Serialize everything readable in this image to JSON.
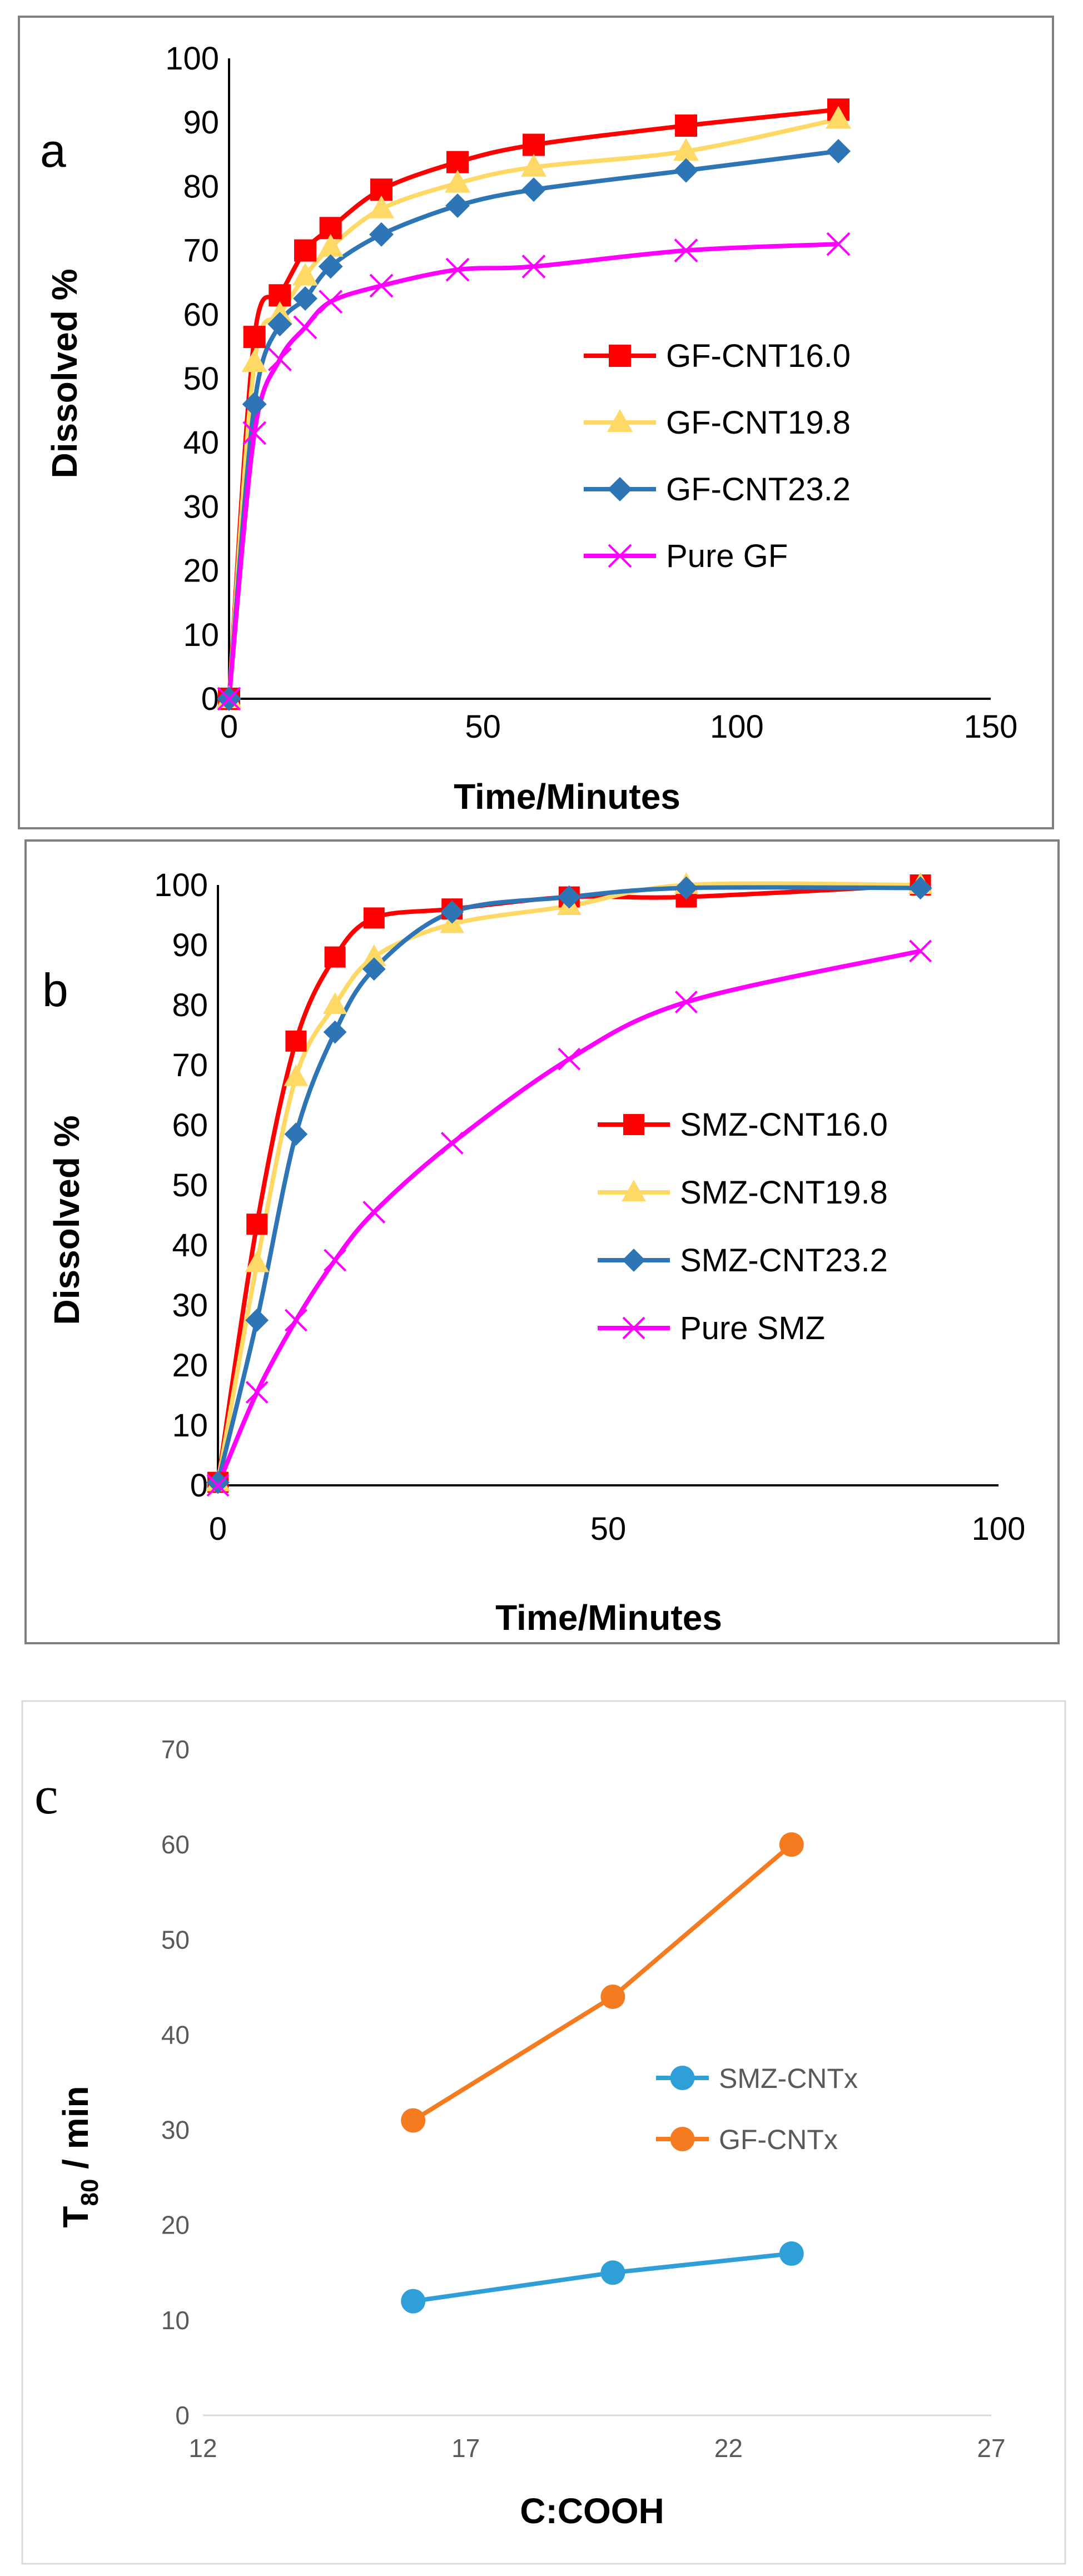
{
  "chart_data": [
    {
      "id": "a",
      "type": "line",
      "panel_label": "a",
      "xlabel": "Time/Minutes",
      "ylabel": "Dissolved %",
      "xlim": [
        0,
        150
      ],
      "ylim": [
        0,
        100
      ],
      "xticks": [
        0,
        50,
        100,
        150
      ],
      "yticks": [
        0,
        10,
        20,
        30,
        40,
        50,
        60,
        70,
        80,
        90,
        100
      ],
      "legend_position": "right",
      "series": [
        {
          "name": "GF-CNT16.0",
          "color": "#ff0000",
          "marker": "square",
          "x": [
            0,
            5,
            10,
            15,
            20,
            30,
            45,
            60,
            90,
            120
          ],
          "y": [
            0,
            56.5,
            63,
            70,
            73.5,
            79.5,
            83.8,
            86.5,
            89.5,
            92
          ]
        },
        {
          "name": "GF-CNT19.8",
          "color": "#ffd966",
          "marker": "triangle",
          "x": [
            0,
            5,
            10,
            15,
            20,
            30,
            45,
            60,
            90,
            120
          ],
          "y": [
            0,
            52.5,
            60,
            66,
            70.5,
            76.5,
            80.5,
            83,
            85.5,
            90.5
          ]
        },
        {
          "name": "GF-CNT23.2",
          "color": "#2e75b6",
          "marker": "diamond",
          "x": [
            0,
            5,
            10,
            15,
            20,
            30,
            45,
            60,
            90,
            120
          ],
          "y": [
            0,
            46,
            58.5,
            62.5,
            67.5,
            72.5,
            77,
            79.5,
            82.5,
            85.5
          ]
        },
        {
          "name": "Pure GF",
          "color": "#ff00ff",
          "marker": "x",
          "x": [
            0,
            5,
            10,
            15,
            20,
            30,
            45,
            60,
            90,
            120
          ],
          "y": [
            0,
            41.5,
            53,
            58,
            62,
            64.5,
            67,
            67.5,
            70,
            71
          ]
        }
      ]
    },
    {
      "id": "b",
      "type": "line",
      "panel_label": "b",
      "xlabel": "Time/Minutes",
      "ylabel": "Dissolved %",
      "xlim": [
        0,
        100
      ],
      "ylim": [
        0,
        100
      ],
      "xticks": [
        0,
        50,
        100
      ],
      "yticks": [
        0,
        10,
        20,
        30,
        40,
        50,
        60,
        70,
        80,
        90,
        100
      ],
      "legend_position": "right",
      "series": [
        {
          "name": "SMZ-CNT16.0",
          "color": "#ff0000",
          "marker": "square",
          "x": [
            0,
            5,
            10,
            15,
            20,
            30,
            45,
            60,
            90
          ],
          "y": [
            0.5,
            43.5,
            74,
            88,
            94.5,
            96,
            98,
            98,
            100
          ]
        },
        {
          "name": "SMZ-CNT19.8",
          "color": "#ffd966",
          "marker": "triangle",
          "x": [
            0,
            5,
            10,
            15,
            20,
            30,
            45,
            60,
            90
          ],
          "y": [
            0.5,
            37,
            68,
            80,
            88,
            93.5,
            96.5,
            100,
            100
          ]
        },
        {
          "name": "SMZ-CNT23.2",
          "color": "#2e75b6",
          "marker": "diamond",
          "x": [
            0,
            5,
            10,
            15,
            20,
            30,
            45,
            60,
            90
          ],
          "y": [
            0.5,
            27.5,
            58.5,
            75.5,
            86,
            95.5,
            98,
            99.5,
            99.5
          ]
        },
        {
          "name": "Pure SMZ",
          "color": "#ff00ff",
          "marker": "x",
          "x": [
            0,
            5,
            10,
            15,
            20,
            30,
            45,
            60,
            90
          ],
          "y": [
            0,
            15.5,
            27.5,
            37.5,
            45.5,
            57,
            71,
            80.5,
            89
          ]
        }
      ]
    },
    {
      "id": "c",
      "type": "line",
      "panel_label": "c",
      "xlabel": "C:COOH",
      "ylabel_main": "T",
      "ylabel_sub": "80",
      "ylabel_rest": " / min",
      "xlim": [
        12,
        27
      ],
      "ylim": [
        0,
        70
      ],
      "xticks": [
        12,
        17,
        22,
        27
      ],
      "yticks": [
        0,
        10,
        20,
        30,
        40,
        50,
        60,
        70
      ],
      "legend_position": "right",
      "series": [
        {
          "name": "SMZ-CNTx",
          "color": "#2f9fd8",
          "marker": "circle",
          "x": [
            16.0,
            19.8,
            23.2
          ],
          "y": [
            12,
            15,
            17
          ]
        },
        {
          "name": "GF-CNTx",
          "color": "#f47b20",
          "marker": "circle",
          "x": [
            16.0,
            19.8,
            23.2
          ],
          "y": [
            31,
            44,
            60
          ]
        }
      ]
    }
  ]
}
